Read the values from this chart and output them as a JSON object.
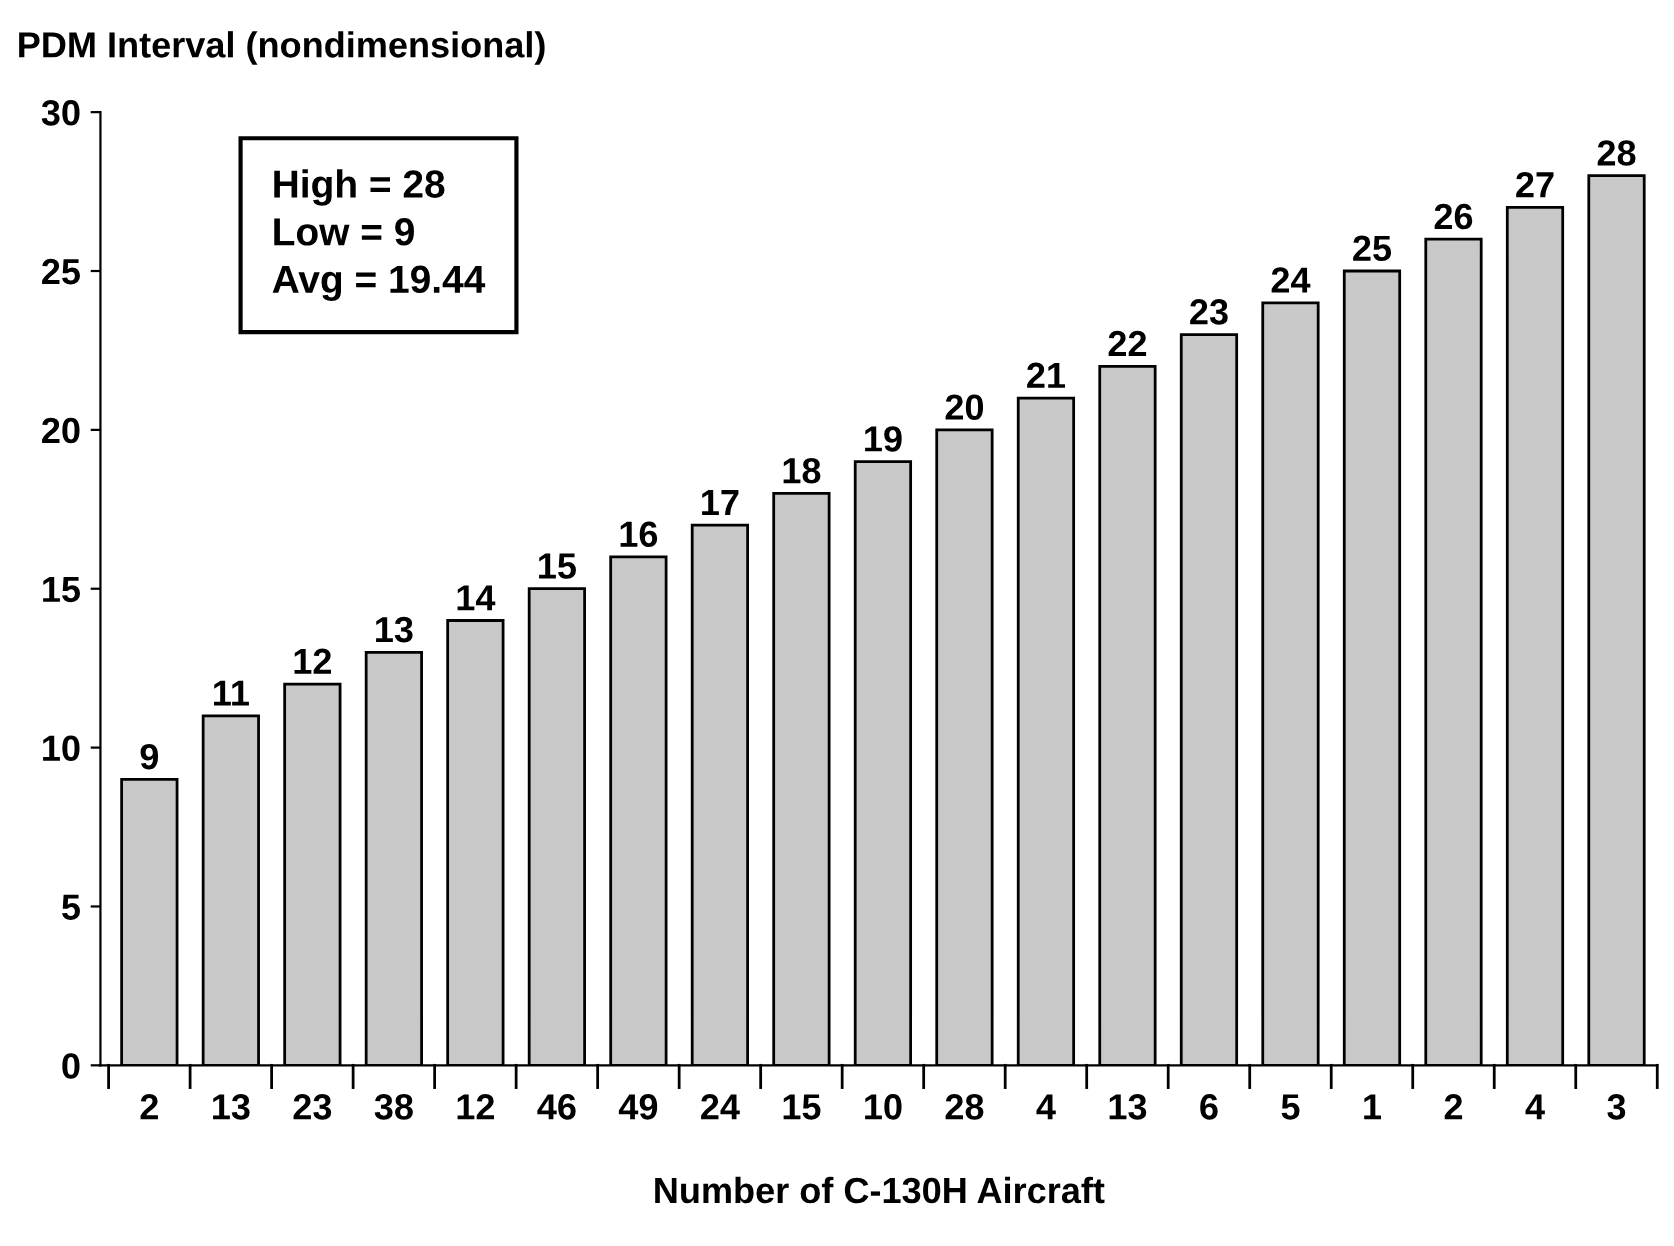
{
  "chart_data": {
    "type": "bar",
    "ylabel": "PDM Interval (nondimensional)",
    "xlabel": "Number of C-130H Aircraft",
    "categories": [
      "2",
      "13",
      "23",
      "38",
      "12",
      "46",
      "49",
      "24",
      "15",
      "10",
      "28",
      "4",
      "13",
      "6",
      "5",
      "1",
      "2",
      "4",
      "3"
    ],
    "values": [
      9,
      11,
      12,
      13,
      14,
      15,
      16,
      17,
      18,
      19,
      20,
      21,
      22,
      23,
      24,
      25,
      26,
      27,
      28
    ],
    "color": "#c8c8c8",
    "ylim": [
      0,
      30
    ],
    "yticks": [
      0,
      5,
      10,
      15,
      20,
      25,
      30
    ],
    "data_labels": true,
    "grid": false,
    "legend": false,
    "annotations": [
      "High = 28\nLow = 9\nAvg = 19.44"
    ]
  }
}
